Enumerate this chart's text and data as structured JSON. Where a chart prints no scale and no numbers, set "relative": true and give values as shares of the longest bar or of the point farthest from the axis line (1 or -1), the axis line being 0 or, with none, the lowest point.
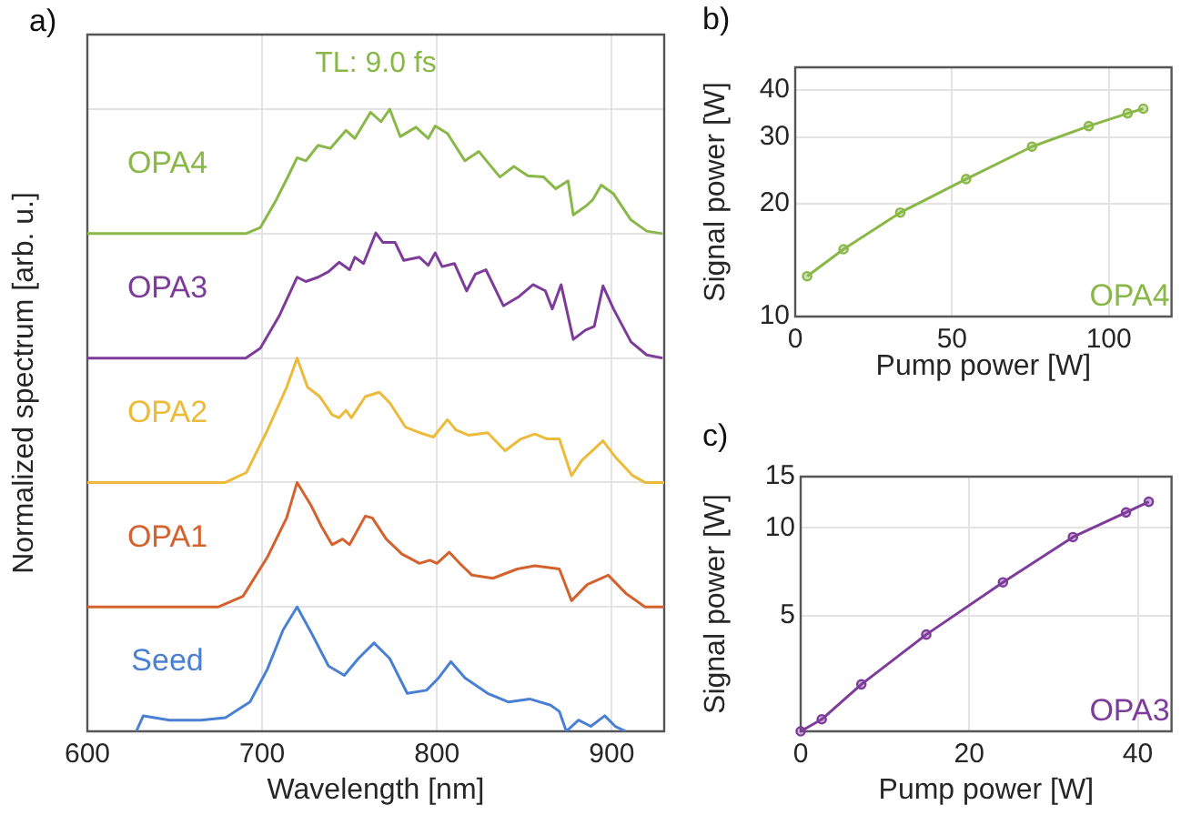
{
  "chart_data": [
    {
      "type": "line",
      "title": "a)",
      "xlabel": "Wavelength [nm]",
      "ylabel": "Normalized spectrum [arb. u.]",
      "relative": true,
      "xlim": [
        600,
        930
      ],
      "xticks": [
        600,
        700,
        800,
        900
      ],
      "grid": true,
      "legend": false,
      "marker": "none",
      "annotations": [
        "TL: 9.0 fs"
      ],
      "series": [
        {
          "name": "Seed",
          "color": "#4a80d4",
          "x": [
            628,
            632,
            647,
            665,
            679,
            693,
            703,
            712,
            720,
            728,
            738,
            747,
            755,
            764,
            773,
            783,
            794,
            801,
            808,
            816,
            829,
            841,
            853,
            865,
            870,
            874,
            881,
            888,
            896,
            902,
            908
          ],
          "values": [
            0,
            0.025,
            0.018,
            0.018,
            0.022,
            0.047,
            0.1,
            0.163,
            0.2,
            0.159,
            0.105,
            0.09,
            0.117,
            0.142,
            0.117,
            0.061,
            0.066,
            0.086,
            0.112,
            0.086,
            0.061,
            0.047,
            0.052,
            0.042,
            0.032,
            0,
            0.018,
            0.008,
            0.025,
            0.008,
            0
          ]
        },
        {
          "name": "OPA1",
          "color": "#d4622f",
          "x": [
            600,
            675,
            689,
            703,
            714,
            720,
            728,
            734,
            740,
            746,
            750,
            759,
            763,
            771,
            780,
            790,
            796,
            800,
            807,
            813,
            820,
            832,
            846,
            856,
            870,
            877,
            886,
            898,
            908,
            919,
            930
          ],
          "values": [
            0.2,
            0.2,
            0.217,
            0.28,
            0.343,
            0.4,
            0.363,
            0.329,
            0.3,
            0.309,
            0.3,
            0.346,
            0.343,
            0.309,
            0.285,
            0.27,
            0.275,
            0.27,
            0.288,
            0.27,
            0.251,
            0.246,
            0.261,
            0.266,
            0.261,
            0.21,
            0.236,
            0.251,
            0.222,
            0.2,
            0.2
          ]
        },
        {
          "name": "OPA2",
          "color": "#ecbb3c",
          "x": [
            600,
            679,
            691,
            703,
            714,
            720,
            726,
            733,
            740,
            744,
            748,
            751,
            759,
            767,
            773,
            782,
            790,
            798,
            806,
            811,
            818,
            829,
            839,
            848,
            856,
            863,
            870,
            877,
            883,
            895,
            902,
            912,
            919,
            930
          ],
          "values": [
            0.4,
            0.4,
            0.416,
            0.484,
            0.553,
            0.6,
            0.553,
            0.538,
            0.509,
            0.504,
            0.516,
            0.504,
            0.538,
            0.545,
            0.528,
            0.489,
            0.48,
            0.473,
            0.501,
            0.484,
            0.476,
            0.48,
            0.451,
            0.47,
            0.478,
            0.47,
            0.47,
            0.411,
            0.436,
            0.467,
            0.441,
            0.411,
            0.4,
            0.4
          ]
        },
        {
          "name": "OPA3",
          "color": "#7d3c9a",
          "x": [
            600,
            690.6,
            699,
            710,
            720,
            725,
            732,
            738,
            744,
            750,
            753,
            758,
            765,
            769,
            776,
            781,
            790,
            795,
            799,
            803,
            810,
            817,
            822,
            828,
            838,
            847,
            855,
            862,
            866,
            871,
            878,
            885,
            890,
            895,
            901,
            911,
            920,
            929
          ],
          "values": [
            0.6,
            0.6,
            0.616,
            0.669,
            0.73,
            0.723,
            0.73,
            0.739,
            0.754,
            0.742,
            0.762,
            0.752,
            0.801,
            0.786,
            0.786,
            0.757,
            0.762,
            0.749,
            0.769,
            0.747,
            0.752,
            0.708,
            0.735,
            0.742,
            0.684,
            0.699,
            0.718,
            0.708,
            0.679,
            0.718,
            0.63,
            0.645,
            0.651,
            0.716,
            0.679,
            0.626,
            0.605,
            0.6
          ]
        },
        {
          "name": "OPA4",
          "color": "#8ab848",
          "x": [
            600,
            690.6,
            699,
            708,
            715,
            720,
            725,
            732,
            739,
            748,
            753,
            762,
            768,
            773,
            779,
            788,
            795,
            799,
            806,
            816,
            824,
            836,
            844,
            852,
            861,
            868,
            875,
            878,
            885,
            889,
            894,
            901,
            911,
            920,
            929
          ],
          "values": [
            0.8,
            0.8,
            0.81,
            0.854,
            0.893,
            0.922,
            0.917,
            0.942,
            0.937,
            0.966,
            0.953,
            0.995,
            0.98,
            1,
            0.956,
            0.971,
            0.953,
            0.973,
            0.961,
            0.917,
            0.932,
            0.891,
            0.908,
            0.893,
            0.891,
            0.872,
            0.885,
            0.83,
            0.844,
            0.854,
            0.878,
            0.864,
            0.822,
            0.804,
            0.8
          ]
        }
      ]
    },
    {
      "type": "line",
      "title": "b)",
      "xlabel": "Pump power [W]",
      "ylabel": "Signal power [W]",
      "log": "y",
      "xlim": [
        0,
        120
      ],
      "xticks": [
        0,
        50,
        100
      ],
      "ylim": [
        10,
        46
      ],
      "yticks": [
        10,
        20,
        30,
        40
      ],
      "grid": true,
      "legend": false,
      "marker": "circle",
      "series": [
        {
          "name": "OPA4",
          "color": "#8ab848",
          "x": [
            3.8,
            15.4,
            33.5,
            54.5,
            75.5,
            93.6,
            106,
            111
          ],
          "values": [
            12.8,
            15.1,
            18.9,
            23.2,
            28.3,
            32.1,
            34.7,
            35.7
          ]
        }
      ]
    },
    {
      "type": "line",
      "title": "c)",
      "xlabel": "Pump power [W]",
      "ylabel": "Signal power [W]",
      "log": "y",
      "xlim": [
        0,
        44
      ],
      "xticks": [
        0,
        20,
        40
      ],
      "ylim": [
        2,
        15
      ],
      "yticks": [
        5,
        10,
        15
      ],
      "grid": true,
      "legend": false,
      "marker": "circle",
      "series": [
        {
          "name": "OPA3",
          "color": "#7d3c9a",
          "x": [
            0,
            2.5,
            7.2,
            14.9,
            24,
            32.3,
            38.6,
            41.3
          ],
          "values": [
            2,
            2.2,
            2.9,
            4.3,
            6.5,
            9.3,
            11.3,
            12.3
          ]
        }
      ]
    }
  ]
}
